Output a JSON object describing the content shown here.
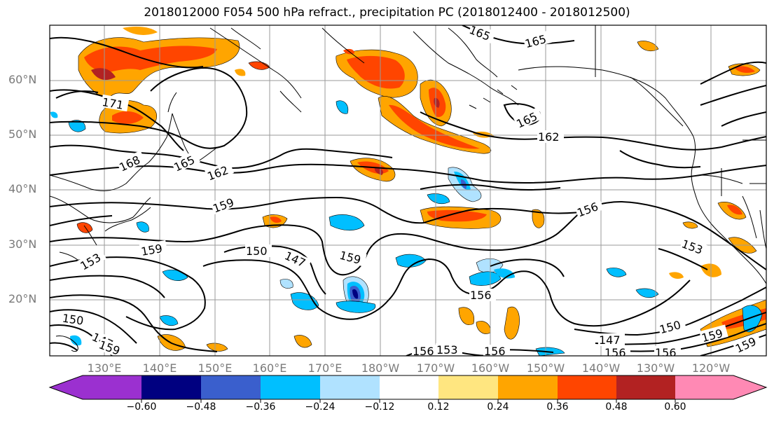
{
  "title": "2018012000 F054 500 hPa refract., precipitation PC (2018012400 - 2018012500)",
  "lat_labels": [
    "60°N",
    "50°N",
    "40°N",
    "30°N",
    "20°N"
  ],
  "lon_labels": [
    "130°E",
    "140°E",
    "150°E",
    "160°E",
    "170°E",
    "180°W",
    "170°W",
    "160°W",
    "150°W",
    "140°W",
    "130°W",
    "120°W"
  ],
  "colorbar": {
    "ticks": [
      "−0.60",
      "−0.48",
      "−0.36",
      "−0.24",
      "−0.12",
      "0.12",
      "0.24",
      "0.36",
      "0.48",
      "0.60"
    ],
    "colors": [
      "#9b30d0",
      "#000080",
      "#3a5fcd",
      "#00bfff",
      "#b0e2ff",
      "#ffffff",
      "#ffe680",
      "#ffa500",
      "#ff4500",
      "#b22222",
      "#ff89b4"
    ]
  },
  "contour_labels": [
    "165",
    "165",
    "171",
    "168",
    "165",
    "162",
    "165",
    "162",
    "159",
    "156",
    "159",
    "150",
    "147",
    "159",
    "153",
    "153",
    "156",
    "150",
    "147",
    "159",
    "147",
    "150",
    "159",
    "159",
    "156",
    "153",
    "156",
    "156",
    "156"
  ]
}
